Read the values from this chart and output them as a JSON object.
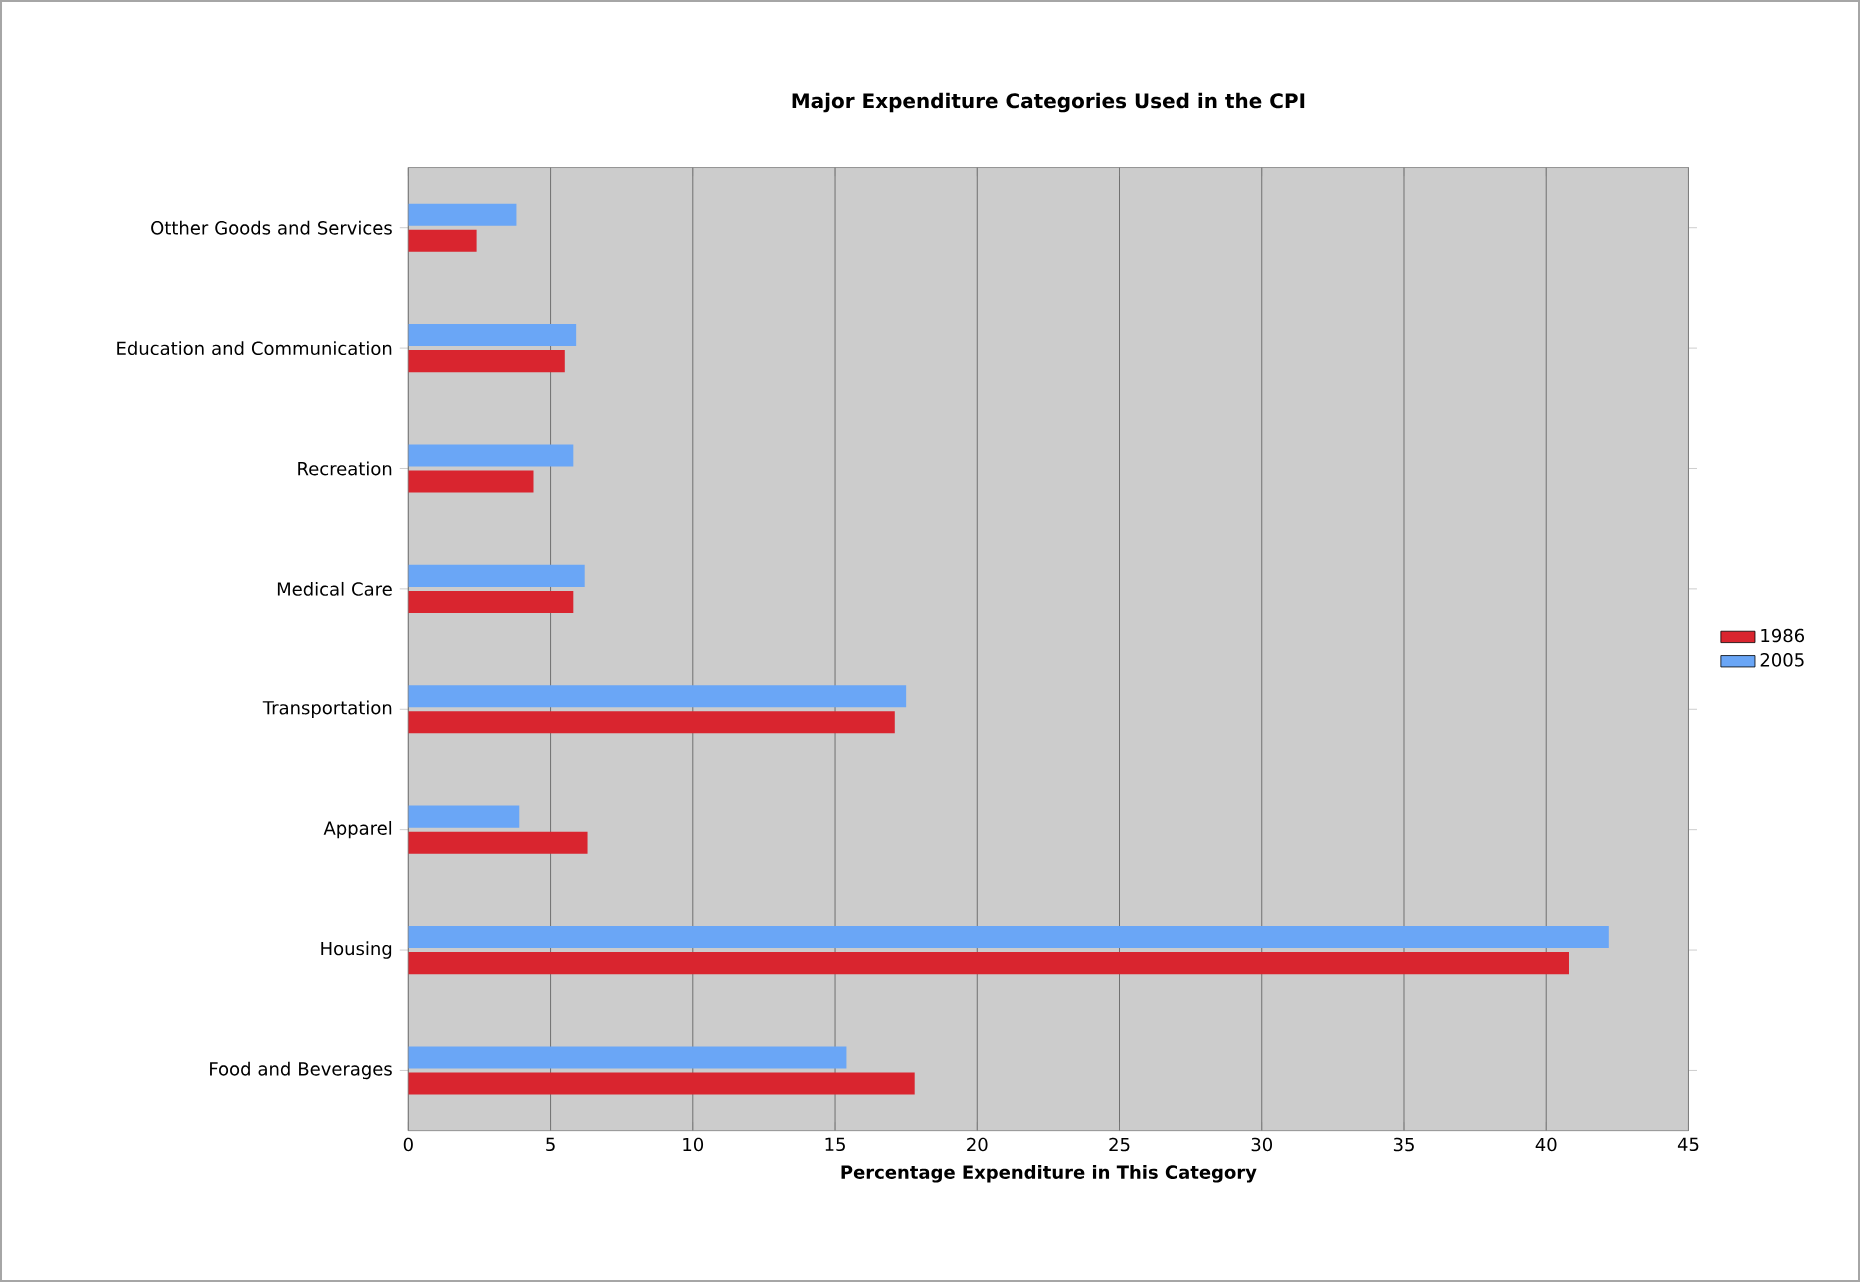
{
  "chart_data": {
    "type": "bar",
    "orientation": "horizontal",
    "title": "Major Expenditure Categories Used in the CPI",
    "xlabel": "Percentage Expenditure in This Category",
    "categories": [
      "Otther Goods and Services",
      "Education and Communication",
      "Recreation",
      "Medical Care",
      "Transportation",
      "Apparel",
      "Housing",
      "Food and Beverages"
    ],
    "series": [
      {
        "name": "1986",
        "color": "#d9252f",
        "values": [
          2.4,
          5.5,
          4.4,
          5.8,
          17.1,
          6.3,
          40.8,
          17.8
        ]
      },
      {
        "name": "2005",
        "color": "#6aa6f6",
        "values": [
          3.8,
          5.9,
          5.8,
          6.2,
          17.5,
          3.9,
          42.2,
          15.4
        ]
      }
    ],
    "xlim": [
      0,
      45
    ],
    "xticks": [
      0,
      5,
      10,
      15,
      20,
      25,
      30,
      35,
      40,
      45
    ],
    "grid": "x",
    "legend": "right"
  }
}
